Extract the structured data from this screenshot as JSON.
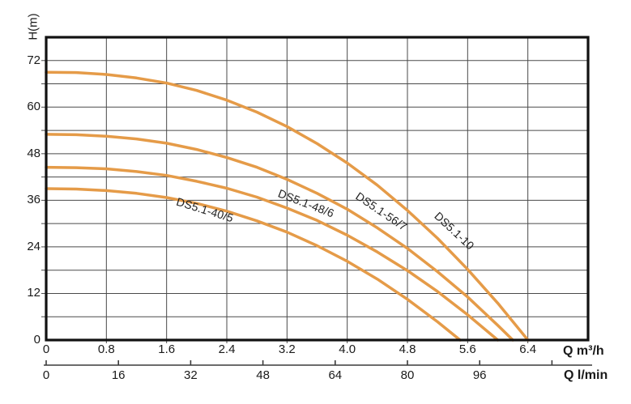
{
  "chart_data": {
    "type": "line",
    "title": "",
    "ylabel": "H(m)",
    "background_color": "#ffffff",
    "curve_color": "#e59b48",
    "grid_color": "#4a4a4a",
    "frame_color": "#111111",
    "text_color": "#1a1a1a",
    "x_axis": {
      "unit_label": "Q m³/h",
      "min": 0,
      "max": 7.2,
      "gridline_values": [
        0.8,
        1.6,
        2.4,
        3.2,
        4.0,
        4.8,
        5.6,
        6.4
      ],
      "tick_values": [
        0,
        0.8,
        1.6,
        2.4,
        3.2,
        4.0,
        4.8,
        5.6,
        6.4
      ],
      "tick_labels": [
        "0",
        "0.8",
        "1.6",
        "2.4",
        "3.2",
        "4.0",
        "4.8",
        "5.6",
        "6.4"
      ]
    },
    "y_axis": {
      "unit_label": "H(m)",
      "min": 0,
      "max": 78,
      "gridline_step": 6,
      "gridline_values": [
        6,
        12,
        18,
        24,
        30,
        36,
        42,
        48,
        54,
        60,
        66,
        72
      ],
      "tick_values": [
        0,
        12,
        24,
        36,
        48,
        60,
        72
      ],
      "tick_labels": [
        "0",
        "12",
        "24",
        "36",
        "48",
        "60",
        "72"
      ]
    },
    "secondary_x_axis": {
      "unit_label": "Q l/min",
      "tick_values_lmin": [
        0,
        16,
        32,
        48,
        64,
        80,
        96,
        112
      ],
      "tick_labels": [
        "0",
        "16",
        "32",
        "48",
        "64",
        "80",
        "96",
        ""
      ]
    },
    "legend_position": "on-curve",
    "grid": true,
    "series": [
      {
        "name": "DS5.1-40/5",
        "shutoff_head_m": 39,
        "max_flow_m3h": 5.5,
        "points": [
          [
            0,
            39
          ],
          [
            0.4,
            38.9
          ],
          [
            0.8,
            38.5
          ],
          [
            1.2,
            37.8
          ],
          [
            1.6,
            36.7
          ],
          [
            2,
            35.2
          ],
          [
            2.4,
            33.2
          ],
          [
            2.8,
            30.7
          ],
          [
            3.2,
            27.8
          ],
          [
            3.6,
            24.3
          ],
          [
            4,
            20.3
          ],
          [
            4.4,
            15.7
          ],
          [
            4.8,
            10.5
          ],
          [
            5.2,
            4.7
          ],
          [
            5.5,
            0
          ]
        ]
      },
      {
        "name": "DS5.1-48/6",
        "shutoff_head_m": 44.5,
        "max_flow_m3h": 6.0,
        "points": [
          [
            0,
            44.5
          ],
          [
            0.4,
            44.4
          ],
          [
            0.8,
            44.1
          ],
          [
            1.2,
            43.4
          ],
          [
            1.6,
            42.4
          ],
          [
            2,
            40.9
          ],
          [
            2.4,
            39.1
          ],
          [
            2.8,
            36.8
          ],
          [
            3.2,
            34
          ],
          [
            3.6,
            30.8
          ],
          [
            4,
            27
          ],
          [
            4.4,
            22.7
          ],
          [
            4.8,
            17.9
          ],
          [
            5.2,
            12.5
          ],
          [
            5.6,
            6.5
          ],
          [
            6,
            0
          ]
        ]
      },
      {
        "name": "DS5.1-56/7",
        "shutoff_head_m": 53,
        "max_flow_m3h": 6.2,
        "points": [
          [
            0,
            53
          ],
          [
            0.4,
            52.9
          ],
          [
            0.8,
            52.5
          ],
          [
            1.2,
            51.8
          ],
          [
            1.6,
            50.7
          ],
          [
            2,
            49.1
          ],
          [
            2.4,
            47
          ],
          [
            2.8,
            44.5
          ],
          [
            3.2,
            41.4
          ],
          [
            3.6,
            37.8
          ],
          [
            4,
            33.7
          ],
          [
            4.4,
            28.9
          ],
          [
            4.8,
            23.6
          ],
          [
            5.2,
            17.6
          ],
          [
            5.6,
            11.1
          ],
          [
            6,
            3.8
          ],
          [
            6.2,
            0
          ]
        ]
      },
      {
        "name": "DS5.1-10",
        "shutoff_head_m": 69,
        "max_flow_m3h": 6.4,
        "points": [
          [
            0,
            69
          ],
          [
            0.4,
            68.9
          ],
          [
            0.8,
            68.4
          ],
          [
            1.2,
            67.5
          ],
          [
            1.6,
            66.2
          ],
          [
            2,
            64.3
          ],
          [
            2.4,
            61.8
          ],
          [
            2.8,
            58.7
          ],
          [
            3.2,
            55
          ],
          [
            3.6,
            50.6
          ],
          [
            4,
            45.6
          ],
          [
            4.4,
            39.9
          ],
          [
            4.8,
            33.4
          ],
          [
            5.2,
            26.2
          ],
          [
            5.6,
            18.2
          ],
          [
            6,
            9.5
          ],
          [
            6.4,
            0
          ]
        ]
      }
    ]
  }
}
